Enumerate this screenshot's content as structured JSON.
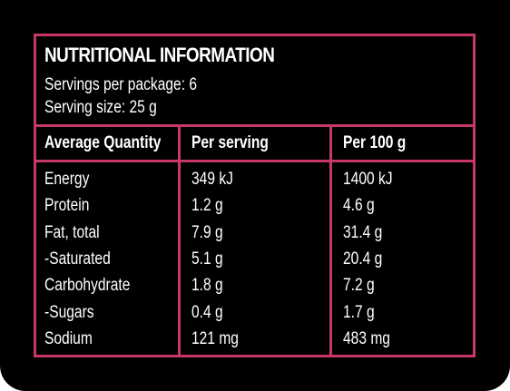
{
  "panel": {
    "title": "NUTRITIONAL INFORMATION",
    "servings_per_package": "Servings per package: 6",
    "serving_size": "Serving size: 25 g",
    "border_color": "#c8376a",
    "background_color": "#000000",
    "text_color": "#ffffff"
  },
  "table": {
    "headers": [
      "Average Quantity",
      "Per serving",
      "Per 100 g"
    ],
    "rows": [
      [
        "Energy",
        "349 kJ",
        "1400 kJ"
      ],
      [
        "Protein",
        "1.2 g",
        "4.6 g"
      ],
      [
        "Fat, total",
        "7.9 g",
        "31.4 g"
      ],
      [
        "-Saturated",
        "5.1 g",
        "20.4 g"
      ],
      [
        "Carbohydrate",
        "1.8 g",
        "7.2 g"
      ],
      [
        "-Sugars",
        "0.4 g",
        "1.7 g"
      ],
      [
        "Sodium",
        "121 mg",
        "483 mg"
      ]
    ]
  }
}
